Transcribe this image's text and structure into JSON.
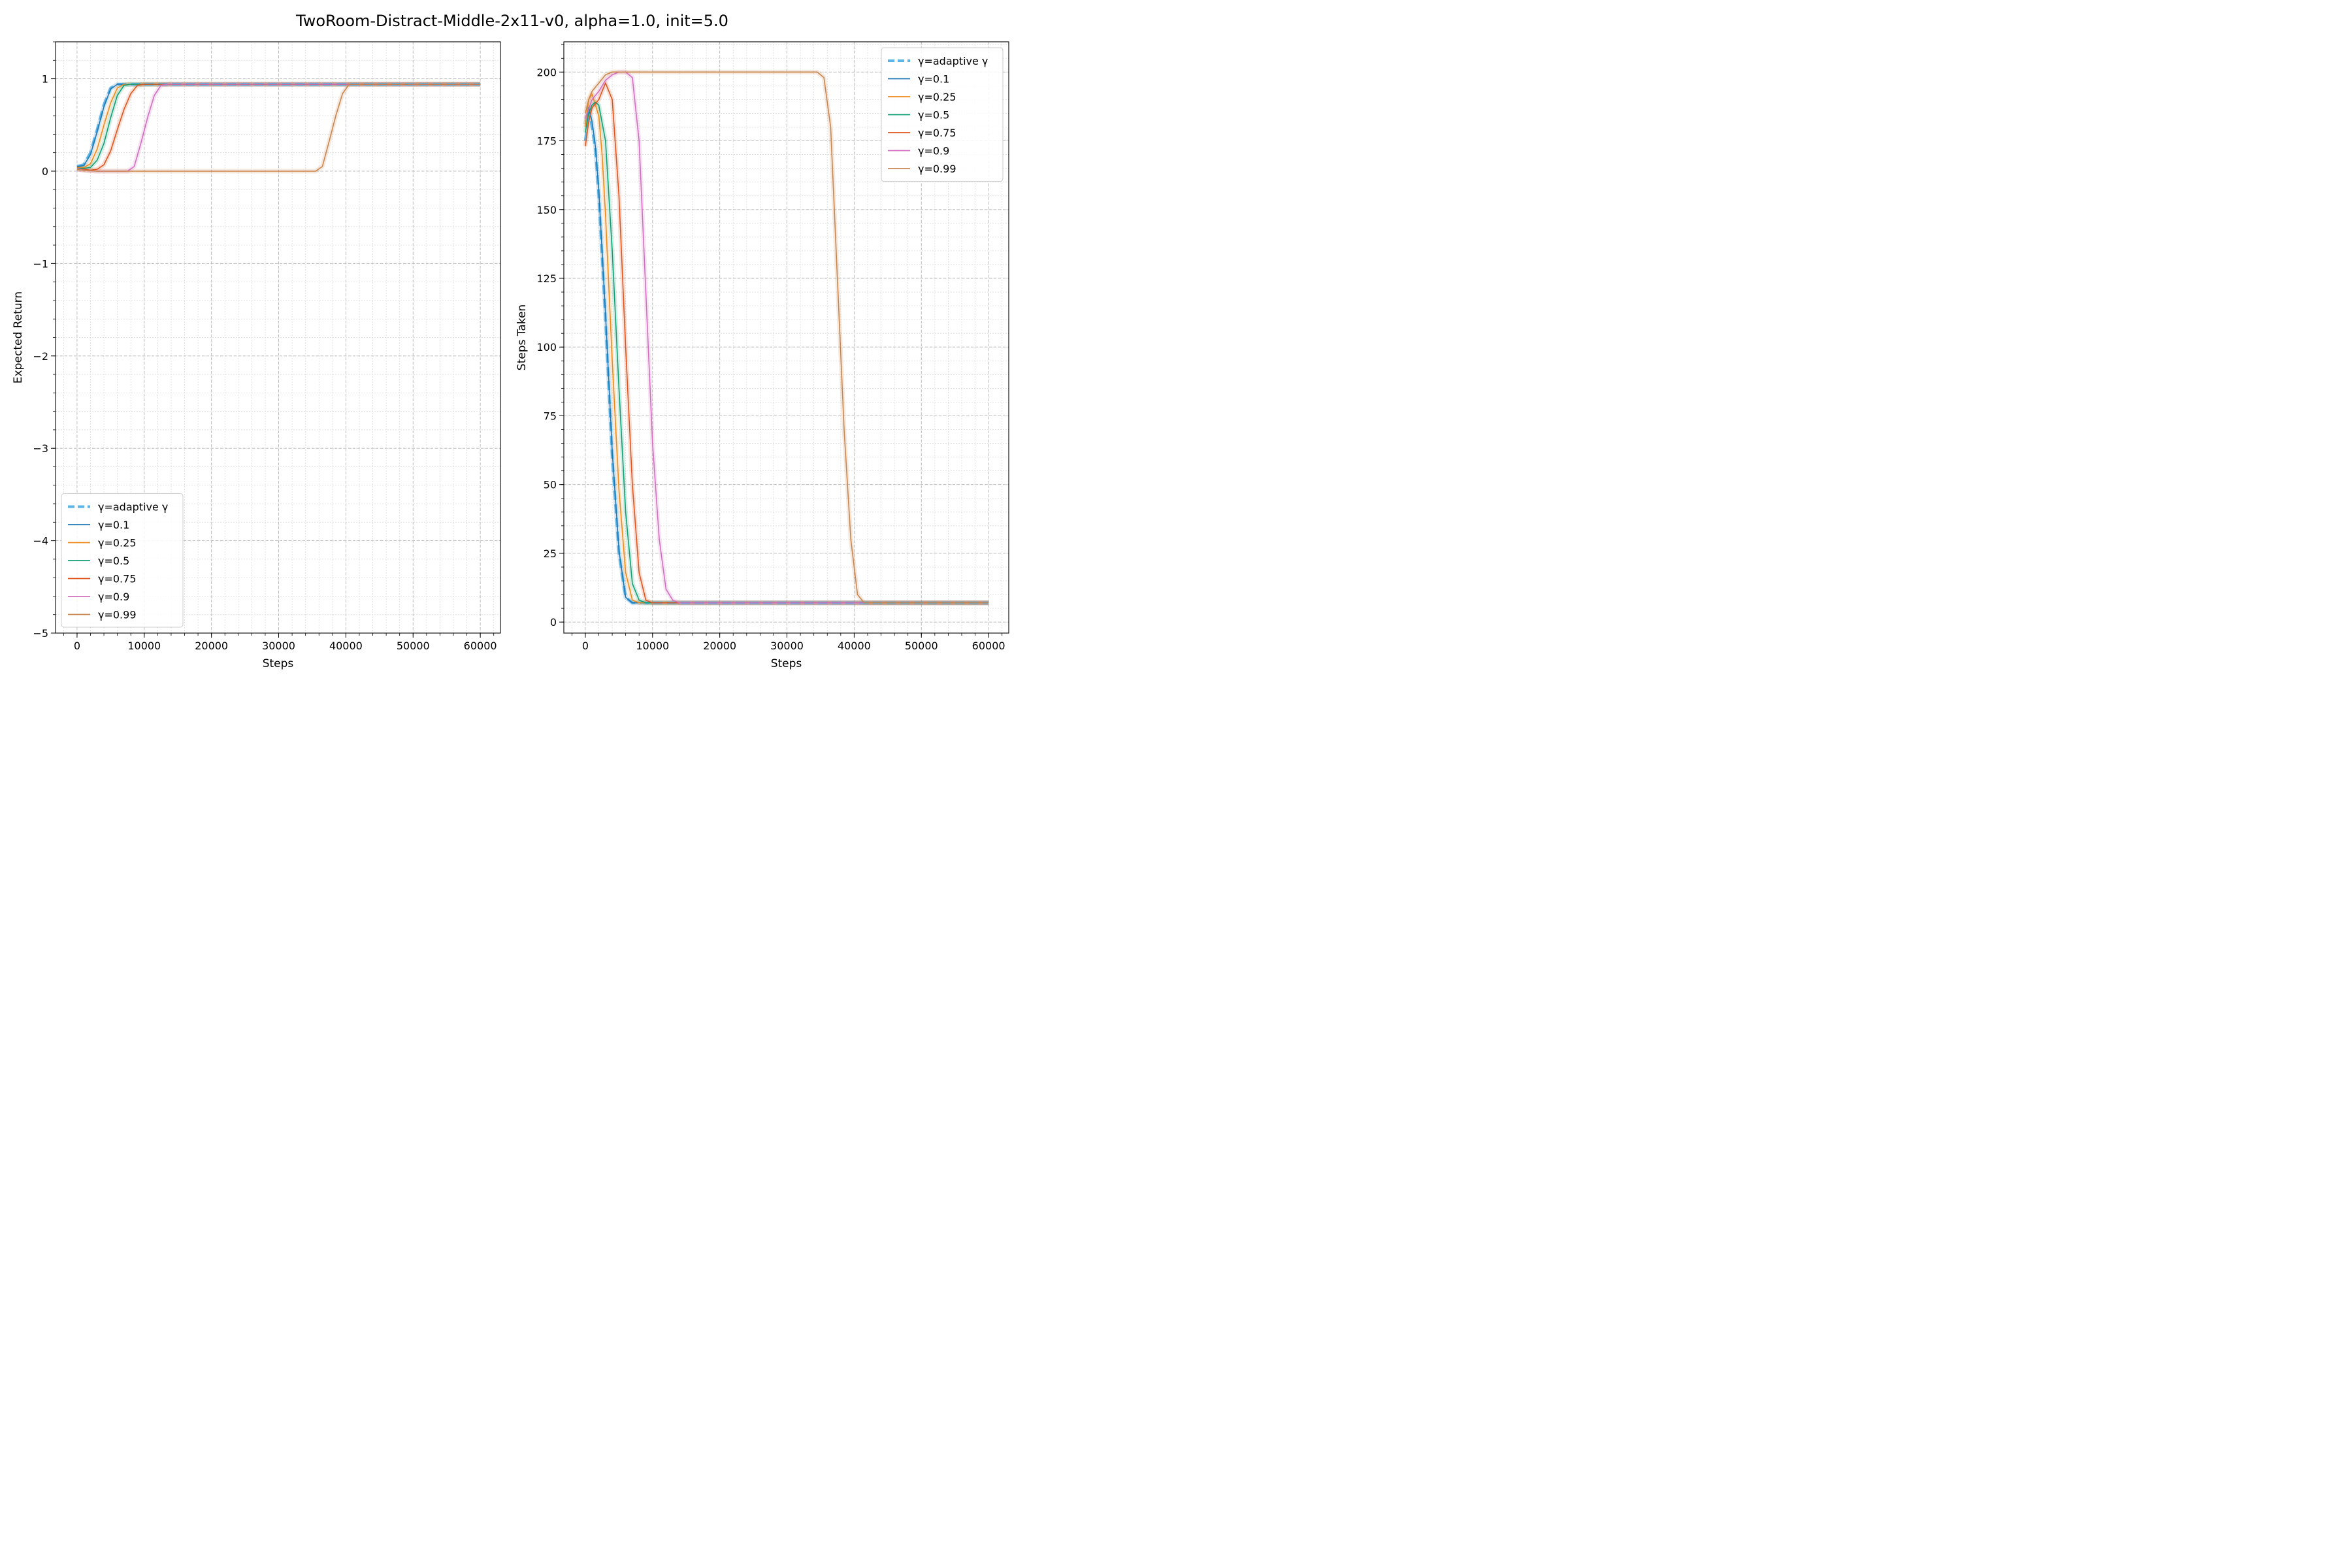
{
  "figure": {
    "title": "TwoRoom-Distract-Middle-2x11-v0, alpha=1.0, init=5.0"
  },
  "series_colors": {
    "adaptive": "#5ab4e5",
    "g0.1": "#1f77b4",
    "g0.25": "#ee8a1a",
    "g0.5": "#119e73",
    "g0.75": "#e0531c",
    "g0.9": "#d16fbe",
    "g0.99": "#c8864e"
  },
  "chart_data": [
    {
      "type": "line",
      "title": "",
      "xlabel": "Steps",
      "ylabel": "Expected Return",
      "xlim": [
        -3200,
        63000
      ],
      "ylim": [
        -5,
        1.4
      ],
      "xticks": [
        0,
        10000,
        20000,
        30000,
        40000,
        50000,
        60000
      ],
      "xtick_labels": [
        "0",
        "10000",
        "20000",
        "30000",
        "40000",
        "50000",
        "60000"
      ],
      "yticks": [
        -5,
        -4,
        -3,
        -2,
        -1,
        0,
        1
      ],
      "ytick_labels": [
        "−5",
        "−4",
        "−3",
        "−2",
        "−1",
        "0",
        "1"
      ],
      "grid": true,
      "legend_position": "lower-left",
      "series": [
        {
          "key": "adaptive",
          "name": "γ=adaptive γ",
          "dashed": true,
          "x": [
            0,
            1000,
            2000,
            3000,
            4000,
            5000,
            6000,
            7000,
            60000
          ],
          "y": [
            0.05,
            0.07,
            0.2,
            0.45,
            0.72,
            0.9,
            0.94,
            0.94,
            0.94
          ]
        },
        {
          "key": "g0.1",
          "name": "γ=0.1",
          "dashed": false,
          "x": [
            0,
            1000,
            2000,
            3000,
            4000,
            5000,
            6000,
            7000,
            60000
          ],
          "y": [
            0.05,
            0.06,
            0.18,
            0.43,
            0.7,
            0.89,
            0.94,
            0.94,
            0.94
          ]
        },
        {
          "key": "g0.25",
          "name": "γ=0.25",
          "dashed": false,
          "x": [
            0,
            1000,
            2000,
            3000,
            4000,
            5000,
            6000,
            7000,
            8000,
            60000
          ],
          "y": [
            0.04,
            0.04,
            0.08,
            0.24,
            0.5,
            0.74,
            0.9,
            0.94,
            0.94,
            0.94
          ]
        },
        {
          "key": "g0.5",
          "name": "γ=0.5",
          "dashed": false,
          "x": [
            0,
            1000,
            2000,
            3000,
            4000,
            5000,
            6000,
            7000,
            8000,
            9000,
            60000
          ],
          "y": [
            0.03,
            0.03,
            0.04,
            0.12,
            0.3,
            0.58,
            0.82,
            0.93,
            0.94,
            0.94,
            0.94
          ]
        },
        {
          "key": "g0.75",
          "name": "γ=0.75",
          "dashed": false,
          "x": [
            0,
            1000,
            2000,
            3000,
            4000,
            5000,
            6000,
            7000,
            8000,
            9000,
            10000,
            11000,
            60000
          ],
          "y": [
            0.02,
            0.02,
            0.01,
            0.02,
            0.07,
            0.22,
            0.45,
            0.67,
            0.84,
            0.93,
            0.94,
            0.94,
            0.94
          ]
        },
        {
          "key": "g0.9",
          "name": "γ=0.9",
          "dashed": false,
          "x": [
            0,
            1000,
            3000,
            6000,
            7500,
            8500,
            9500,
            10500,
            11500,
            12500,
            13500,
            60000
          ],
          "y": [
            0.03,
            0.01,
            0.0,
            0.0,
            0.0,
            0.05,
            0.3,
            0.58,
            0.82,
            0.93,
            0.94,
            0.94
          ]
        },
        {
          "key": "g0.99",
          "name": "γ=0.99",
          "dashed": false,
          "x": [
            0,
            1000,
            3000,
            10000,
            20000,
            30000,
            35500,
            36500,
            37500,
            38500,
            39500,
            40500,
            41500,
            60000
          ],
          "y": [
            0.02,
            0.01,
            0.0,
            0.0,
            0.0,
            0.0,
            0.0,
            0.05,
            0.32,
            0.6,
            0.84,
            0.94,
            0.94,
            0.94
          ]
        }
      ]
    },
    {
      "type": "line",
      "title": "",
      "xlabel": "Steps",
      "ylabel": "Steps Taken",
      "xlim": [
        -3200,
        63000
      ],
      "ylim": [
        -4,
        211
      ],
      "xticks": [
        0,
        10000,
        20000,
        30000,
        40000,
        50000,
        60000
      ],
      "xtick_labels": [
        "0",
        "10000",
        "20000",
        "30000",
        "40000",
        "50000",
        "60000"
      ],
      "yticks": [
        0,
        25,
        50,
        75,
        100,
        125,
        150,
        175,
        200
      ],
      "ytick_labels": [
        "0",
        "25",
        "50",
        "75",
        "100",
        "125",
        "150",
        "175",
        "200"
      ],
      "grid": true,
      "legend_position": "upper-right",
      "series": [
        {
          "key": "adaptive",
          "name": "γ=adaptive γ",
          "dashed": true,
          "x": [
            0,
            500,
            1000,
            1500,
            2000,
            3000,
            4000,
            5000,
            6000,
            7000,
            60000
          ],
          "y": [
            175,
            186,
            180,
            172,
            155,
            110,
            60,
            25,
            9,
            7,
            7
          ]
        },
        {
          "key": "g0.1",
          "name": "γ=0.1",
          "dashed": false,
          "x": [
            0,
            500,
            1000,
            1500,
            2000,
            3000,
            4000,
            5000,
            6000,
            7000,
            60000
          ],
          "y": [
            181,
            187,
            182,
            173,
            157,
            112,
            62,
            26,
            9,
            7,
            7
          ]
        },
        {
          "key": "g0.25",
          "name": "γ=0.25",
          "dashed": false,
          "x": [
            0,
            500,
            1000,
            2000,
            2500,
            3000,
            4000,
            5000,
            6000,
            7000,
            8000,
            60000
          ],
          "y": [
            180,
            190,
            192,
            184,
            170,
            148,
            95,
            48,
            18,
            8,
            7,
            7
          ]
        },
        {
          "key": "g0.5",
          "name": "γ=0.5",
          "dashed": false,
          "x": [
            0,
            500,
            1000,
            1500,
            2000,
            3000,
            4000,
            5000,
            6000,
            7000,
            8000,
            9000,
            60000
          ],
          "y": [
            178,
            185,
            188,
            189,
            188,
            175,
            135,
            85,
            40,
            14,
            8,
            7,
            7
          ]
        },
        {
          "key": "g0.75",
          "name": "γ=0.75",
          "dashed": false,
          "x": [
            0,
            500,
            1000,
            2000,
            3000,
            4000,
            5000,
            6000,
            7000,
            8000,
            9000,
            10000,
            60000
          ],
          "y": [
            173,
            182,
            187,
            190,
            196,
            190,
            155,
            100,
            50,
            18,
            8,
            7,
            7
          ]
        },
        {
          "key": "g0.9",
          "name": "γ=0.9",
          "dashed": false,
          "x": [
            0,
            1000,
            2000,
            3000,
            4000,
            5000,
            6000,
            7000,
            8000,
            9000,
            10000,
            11000,
            12000,
            13000,
            14000,
            60000
          ],
          "y": [
            183,
            190,
            193,
            197,
            199,
            200,
            200,
            198,
            175,
            120,
            65,
            30,
            12,
            8,
            7,
            7
          ]
        },
        {
          "key": "g0.99",
          "name": "γ=0.99",
          "dashed": false,
          "x": [
            0,
            500,
            1000,
            2000,
            3000,
            4000,
            5000,
            10000,
            20000,
            30000,
            34500,
            35500,
            36500,
            37500,
            38500,
            39500,
            40500,
            41500,
            60000
          ],
          "y": [
            185,
            190,
            193,
            196,
            199,
            200,
            200,
            200,
            200,
            200,
            200,
            198,
            180,
            125,
            70,
            30,
            10,
            7,
            7
          ]
        }
      ]
    }
  ]
}
